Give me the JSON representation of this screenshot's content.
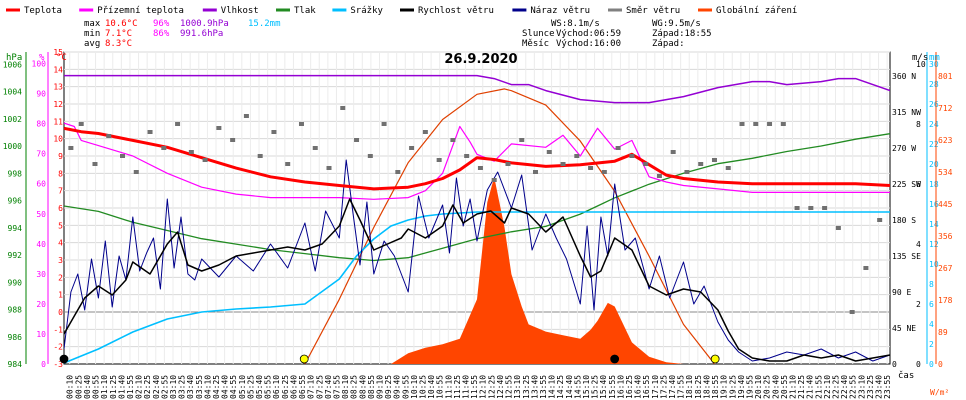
{
  "chart_data": {
    "type": "line",
    "title": "26.9.2020",
    "xlabel": "čas",
    "x_ticks": [
      "00:10",
      "00:25",
      "00:40",
      "00:55",
      "01:10",
      "01:25",
      "01:40",
      "01:55",
      "02:10",
      "02:25",
      "02:40",
      "02:55",
      "03:10",
      "03:25",
      "03:40",
      "03:55",
      "04:10",
      "04:25",
      "04:40",
      "04:55",
      "05:10",
      "05:25",
      "05:40",
      "05:55",
      "06:10",
      "06:25",
      "06:40",
      "06:55",
      "07:10",
      "07:25",
      "07:40",
      "07:55",
      "08:10",
      "08:25",
      "08:40",
      "08:55",
      "09:10",
      "09:25",
      "09:40",
      "09:55",
      "10:10",
      "10:25",
      "10:40",
      "10:55",
      "11:10",
      "11:25",
      "11:40",
      "11:55",
      "12:10",
      "12:25",
      "12:40",
      "12:55",
      "13:10",
      "13:25",
      "13:40",
      "13:55",
      "14:10",
      "14:25",
      "14:40",
      "14:55",
      "15:10",
      "15:25",
      "15:40",
      "15:55",
      "16:10",
      "16:25",
      "16:40",
      "16:55",
      "17:10",
      "17:25",
      "17:40",
      "17:55",
      "18:10",
      "18:25",
      "18:40",
      "18:55",
      "19:10",
      "19:25",
      "19:40",
      "19:55",
      "20:10",
      "20:25",
      "20:40",
      "20:55",
      "21:10",
      "21:25",
      "21:40",
      "21:55",
      "22:10",
      "22:25",
      "22:40",
      "22:55",
      "23:10",
      "23:25",
      "23:40",
      "23:55"
    ],
    "axes": {
      "hpa": {
        "label": "hPa",
        "color": "#008000",
        "ticks": [
          "984",
          "986",
          "988",
          "990",
          "992",
          "994",
          "996",
          "998",
          "1000",
          "1002",
          "1004",
          "1006"
        ]
      },
      "pct": {
        "label": "%",
        "color": "#ff00ff",
        "ticks": [
          "0",
          "10",
          "20",
          "30",
          "40",
          "50",
          "60",
          "70",
          "80",
          "90",
          "100"
        ]
      },
      "temp": {
        "label": "°C",
        "color": "#ff0000",
        "ticks": [
          "-3",
          "-2",
          "-1",
          "0",
          "1",
          "2",
          "3",
          "4",
          "5",
          "6",
          "7",
          "8",
          "9",
          "10",
          "11",
          "12",
          "13",
          "14",
          "15"
        ]
      },
      "dir": {
        "label": "m/s",
        "ticks": [
          "0",
          "45 NE",
          "90 E",
          "135 SE",
          "180 S",
          "225 SW",
          "270 W",
          "315 NW",
          "360 N"
        ]
      },
      "mm": {
        "label": "mm",
        "color": "#00bfff",
        "ticks": [
          "0",
          "2",
          "4",
          "6",
          "8",
          "10",
          "12",
          "14",
          "16",
          "18",
          "20",
          "22",
          "24",
          "26",
          "28",
          "30"
        ]
      },
      "ms": {
        "ticks": [
          "0",
          "2",
          "4",
          "6",
          "8",
          "10"
        ]
      },
      "wm2": {
        "label": "W/m²",
        "color": "#ff4500",
        "ticks": [
          "0",
          "89",
          "178",
          "267",
          "356",
          "445",
          "534",
          "623",
          "712",
          "801"
        ]
      }
    },
    "legend": [
      {
        "name": "Teplota",
        "color": "#ff0000"
      },
      {
        "name": "Přízemní teplota",
        "color": "#ff00ff"
      },
      {
        "name": "Vlhkost",
        "color": "#9400d3"
      },
      {
        "name": "Tlak",
        "color": "#228b22"
      },
      {
        "name": "Srážky",
        "color": "#00bfff"
      },
      {
        "name": "Rychlost větru",
        "color": "#000000"
      },
      {
        "name": "Náraz větru",
        "color": "#00008b"
      },
      {
        "name": "Směr větru",
        "color": "#808080"
      },
      {
        "name": "Globální záření",
        "color": "#ff4500"
      }
    ],
    "stats": {
      "max_label": "max",
      "min_label": "min",
      "avg_label": "avg",
      "max_temp": "10.6°C",
      "max_hum": "96%",
      "max_press": "1000.9hPa",
      "rain": "15.2mm",
      "min_temp": "7.1°C",
      "min_hum": "86%",
      "min_press": "991.6hPa",
      "avg_temp": "8.3°C"
    },
    "info": {
      "ws": "WS:8.1m/s",
      "wg": "WG:9.5m/s",
      "slunce": "Slunce",
      "slunce_vychod": "Východ:06:59",
      "slunce_zapad": "Západ:18:55",
      "mesic": "Měsíc",
      "mesic_vychod": "Východ:16:00",
      "mesic_zapad": "Západ:"
    },
    "series": {
      "teplota": {
        "unit": "°C",
        "x": [
          0,
          0.5,
          1,
          2,
          3,
          4,
          5,
          6,
          7,
          8,
          9,
          10,
          10.5,
          11,
          11.5,
          12,
          12.5,
          13,
          14,
          15,
          16,
          16.5,
          17,
          17.5,
          18,
          19,
          20,
          21,
          22,
          23,
          24
        ],
        "y": [
          10.6,
          10.4,
          10.3,
          9.9,
          9.5,
          8.9,
          8.3,
          7.8,
          7.5,
          7.3,
          7.1,
          7.2,
          7.4,
          7.7,
          8.2,
          8.9,
          8.8,
          8.6,
          8.4,
          8.5,
          8.7,
          9.1,
          8.5,
          7.9,
          7.7,
          7.5,
          7.4,
          7.4,
          7.4,
          7.4,
          7.3
        ]
      },
      "prizemni_teplota": {
        "unit": "°C",
        "x": [
          0,
          0.3,
          0.5,
          1,
          2,
          3,
          4,
          5,
          6,
          7,
          8,
          9,
          10,
          10.5,
          11,
          11.5,
          11.8,
          12,
          12.5,
          13,
          14,
          14.5,
          15,
          15.5,
          16,
          16.5,
          17,
          17.5,
          18,
          19,
          20,
          21,
          22,
          23,
          24
        ],
        "y": [
          10.9,
          10.7,
          9.9,
          9.6,
          9.0,
          8.0,
          7.2,
          6.8,
          6.6,
          6.6,
          6.6,
          6.5,
          6.6,
          7.0,
          8.0,
          10.7,
          9.8,
          9.1,
          8.7,
          9.7,
          9.5,
          10.2,
          9.0,
          10.6,
          9.4,
          9.9,
          7.8,
          7.5,
          7.3,
          7.1,
          6.9,
          6.9,
          6.9,
          6.9,
          6.9
        ]
      },
      "vlhkost": {
        "unit": "%",
        "x": [
          0,
          1,
          2,
          3,
          4,
          5,
          6,
          7,
          8,
          9,
          10,
          11,
          12,
          12.5,
          13,
          13.5,
          14,
          15,
          16,
          17,
          17.5,
          18,
          19,
          20,
          20.5,
          21,
          22,
          22.5,
          23,
          24
        ],
        "y": [
          96,
          96,
          96,
          96,
          96,
          96,
          96,
          96,
          96,
          96,
          96,
          96,
          96,
          95,
          93,
          93,
          91,
          88,
          87,
          87,
          88,
          89,
          92,
          94,
          94,
          93,
          94,
          95,
          95,
          91
        ]
      },
      "tlak": {
        "unit": "hPa",
        "x": [
          0,
          1,
          2,
          3,
          4,
          5,
          6,
          7,
          8,
          9,
          10,
          11,
          12,
          13,
          14,
          15,
          15.5,
          16,
          17,
          18,
          19,
          20,
          21,
          22,
          23,
          24
        ],
        "y": [
          995.6,
          995.2,
          994.4,
          993.8,
          993.2,
          992.8,
          992.4,
          992.1,
          991.8,
          991.6,
          991.8,
          992.5,
          993.2,
          993.7,
          994.1,
          995.0,
          995.6,
          996.2,
          997.2,
          998.0,
          998.7,
          999.1,
          999.6,
          1000.0,
          1000.5,
          1000.9
        ]
      },
      "srazky": {
        "unit": "mm",
        "x": [
          0,
          1,
          2,
          3,
          4,
          5,
          6,
          7,
          8,
          8.5,
          9,
          9.5,
          10,
          10.5,
          11,
          11.5,
          12,
          24
        ],
        "y": [
          0.1,
          1.5,
          3.2,
          4.5,
          5.2,
          5.5,
          5.7,
          6.0,
          8.5,
          10.8,
          12.5,
          13.8,
          14.4,
          14.8,
          15.0,
          15.1,
          15.2,
          15.2
        ]
      },
      "rychlost_vetru": {
        "unit": "m/s",
        "x": [
          0,
          0.3,
          0.6,
          1,
          1.4,
          1.8,
          2,
          2.5,
          3,
          3.3,
          3.6,
          4,
          4.5,
          5,
          5.5,
          6,
          6.5,
          7,
          7.5,
          8,
          8.3,
          8.6,
          9,
          9.4,
          9.8,
          10,
          10.5,
          11,
          11.3,
          11.6,
          12,
          12.4,
          12.8,
          13,
          13.5,
          14,
          14.5,
          15,
          15.3,
          15.6,
          16,
          16.5,
          17,
          17.5,
          18,
          18.5,
          19,
          19.3,
          19.6,
          20,
          20.5,
          21,
          21.5,
          22,
          22.5,
          23,
          23.5,
          24
        ],
        "y": [
          1.0,
          1.6,
          2.2,
          2.6,
          2.3,
          2.8,
          3.4,
          3.0,
          4.0,
          4.4,
          3.3,
          3.1,
          3.3,
          3.6,
          3.7,
          3.8,
          3.9,
          3.8,
          4.0,
          4.6,
          5.5,
          4.8,
          3.8,
          4.0,
          4.2,
          4.5,
          4.2,
          4.6,
          5.3,
          4.7,
          5.0,
          5.1,
          4.7,
          5.2,
          5.0,
          4.4,
          4.9,
          3.6,
          2.9,
          3.1,
          4.2,
          3.8,
          2.6,
          2.3,
          2.5,
          2.4,
          1.8,
          1.1,
          0.5,
          0.2,
          0.1,
          0.1,
          0.3,
          0.2,
          0.3,
          0.1,
          0.2,
          0.3
        ]
      },
      "naraz_vetru": {
        "unit": "m/s",
        "x": [
          0,
          0.2,
          0.4,
          0.6,
          0.8,
          1,
          1.2,
          1.4,
          1.6,
          1.8,
          2,
          2.2,
          2.4,
          2.6,
          2.8,
          3,
          3.2,
          3.4,
          3.6,
          3.8,
          4,
          4.5,
          5,
          5.5,
          6,
          6.5,
          7,
          7.3,
          7.6,
          8,
          8.2,
          8.4,
          8.6,
          8.8,
          9,
          9.3,
          9.6,
          10,
          10.3,
          10.6,
          11,
          11.2,
          11.4,
          11.6,
          11.8,
          12,
          12.3,
          12.6,
          13,
          13.3,
          13.6,
          14,
          14.3,
          14.6,
          15,
          15.2,
          15.4,
          15.6,
          15.8,
          16,
          16.3,
          16.6,
          17,
          17.3,
          17.6,
          18,
          18.3,
          18.6,
          19,
          19.3,
          19.6,
          20,
          20.5,
          21,
          21.5,
          22,
          22.5,
          23,
          23.5,
          24
        ],
        "y": [
          0.5,
          2.4,
          3.0,
          1.8,
          3.5,
          2.2,
          4.1,
          1.9,
          3.6,
          2.8,
          4.9,
          3.1,
          3.7,
          4.2,
          2.5,
          5.5,
          3.2,
          4.9,
          3.0,
          2.8,
          3.5,
          2.9,
          3.6,
          3.1,
          4.0,
          3.2,
          4.7,
          3.1,
          5.1,
          4.2,
          6.8,
          5.0,
          3.3,
          5.4,
          3.0,
          4.1,
          3.6,
          2.4,
          5.6,
          4.2,
          5.3,
          3.7,
          6.2,
          4.6,
          5.5,
          4.1,
          5.8,
          6.4,
          5.2,
          6.3,
          3.8,
          5.0,
          4.2,
          3.5,
          2.0,
          4.6,
          1.8,
          4.9,
          3.6,
          6.0,
          3.8,
          4.2,
          2.5,
          3.6,
          2.2,
          3.4,
          2.0,
          2.6,
          1.4,
          0.8,
          0.4,
          0.1,
          0.2,
          0.4,
          0.3,
          0.5,
          0.2,
          0.4,
          0.1,
          0.3
        ]
      },
      "smer_vetru": {
        "unit": "°",
        "x": [
          0.2,
          0.5,
          0.9,
          1.3,
          1.7,
          2.1,
          2.5,
          2.9,
          3.3,
          3.7,
          4.1,
          4.5,
          4.9,
          5.3,
          5.7,
          6.1,
          6.5,
          6.9,
          7.3,
          7.7,
          8.1,
          8.5,
          8.9,
          9.3,
          9.7,
          10.1,
          10.5,
          10.9,
          11.3,
          11.7,
          12.1,
          12.5,
          12.9,
          13.3,
          13.7,
          14.1,
          14.5,
          14.9,
          15.3,
          15.7,
          16.1,
          16.5,
          16.9,
          17.3,
          17.7,
          18.1,
          18.5,
          18.9,
          19.3,
          19.7,
          20.1,
          20.5,
          20.9,
          21.3,
          21.7,
          22.1,
          22.5,
          22.9,
          23.3,
          23.7
        ],
        "y": [
          270,
          300,
          250,
          285,
          260,
          240,
          290,
          270,
          300,
          265,
          255,
          295,
          280,
          310,
          260,
          290,
          250,
          300,
          270,
          245,
          320,
          280,
          260,
          300,
          240,
          270,
          290,
          255,
          280,
          260,
          245,
          230,
          250,
          280,
          240,
          265,
          250,
          260,
          245,
          240,
          270,
          260,
          250,
          235,
          265,
          240,
          250,
          255,
          245,
          300,
          300,
          300,
          300,
          195,
          195,
          195,
          170,
          65,
          120,
          180
        ]
      },
      "globalni_zareni": {
        "unit": "W/m²",
        "x": [
          0,
          9.5,
          10,
          10.5,
          11,
          11.5,
          12,
          12.3,
          12.5,
          12.8,
          13,
          13.3,
          13.5,
          14,
          14.5,
          15,
          15.3,
          15.5,
          15.8,
          16,
          16.3,
          16.5,
          17,
          17.5,
          18,
          24
        ],
        "y": [
          0,
          0,
          30,
          45,
          55,
          70,
          180,
          450,
          520,
          380,
          250,
          160,
          110,
          90,
          80,
          70,
          95,
          120,
          170,
          160,
          100,
          60,
          20,
          5,
          0,
          0
        ]
      },
      "clear_sky_radiation": {
        "unit": "W/m²",
        "x": [
          7,
          8,
          9,
          10,
          11,
          12,
          12.8,
          13,
          14,
          15,
          16,
          17,
          18,
          18.9
        ],
        "y": [
          0,
          180,
          380,
          560,
          680,
          750,
          765,
          760,
          720,
          620,
          480,
          300,
          110,
          0
        ]
      }
    },
    "markers": [
      {
        "name": "sunrise",
        "x": 6.98,
        "color": "#ffff00"
      },
      {
        "name": "sunset",
        "x": 18.92,
        "color": "#ffff00"
      },
      {
        "name": "moonrise",
        "x": 16.0,
        "color": "#000000"
      },
      {
        "name": "midnight",
        "x": 0,
        "color": "#000000"
      }
    ]
  }
}
